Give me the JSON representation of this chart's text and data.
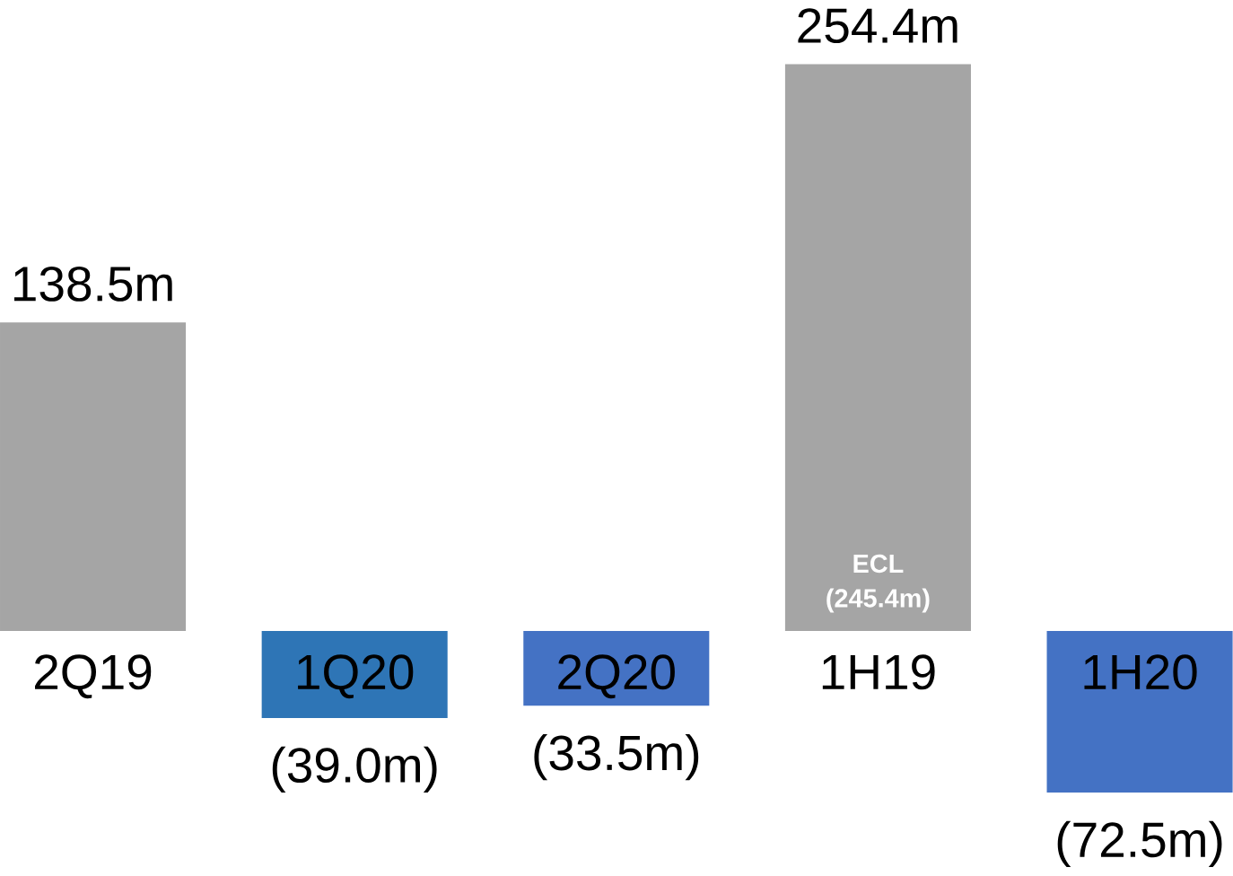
{
  "chart_data": {
    "type": "bar",
    "categories": [
      "2Q19",
      "1Q20",
      "2Q20",
      "1H19",
      "1H20"
    ],
    "values": [
      138.5,
      -39.0,
      -33.5,
      254.4,
      -72.5
    ],
    "colors": [
      "#a5a5a5",
      "#2e75b6",
      "#4472c4",
      "#a5a5a5",
      "#4472c4"
    ],
    "value_labels": [
      "138.5m",
      "(39.0m)",
      "(33.5m)",
      "254.4m",
      "(72.5m)"
    ],
    "annotations": [
      "ECL (245.4m)"
    ]
  }
}
